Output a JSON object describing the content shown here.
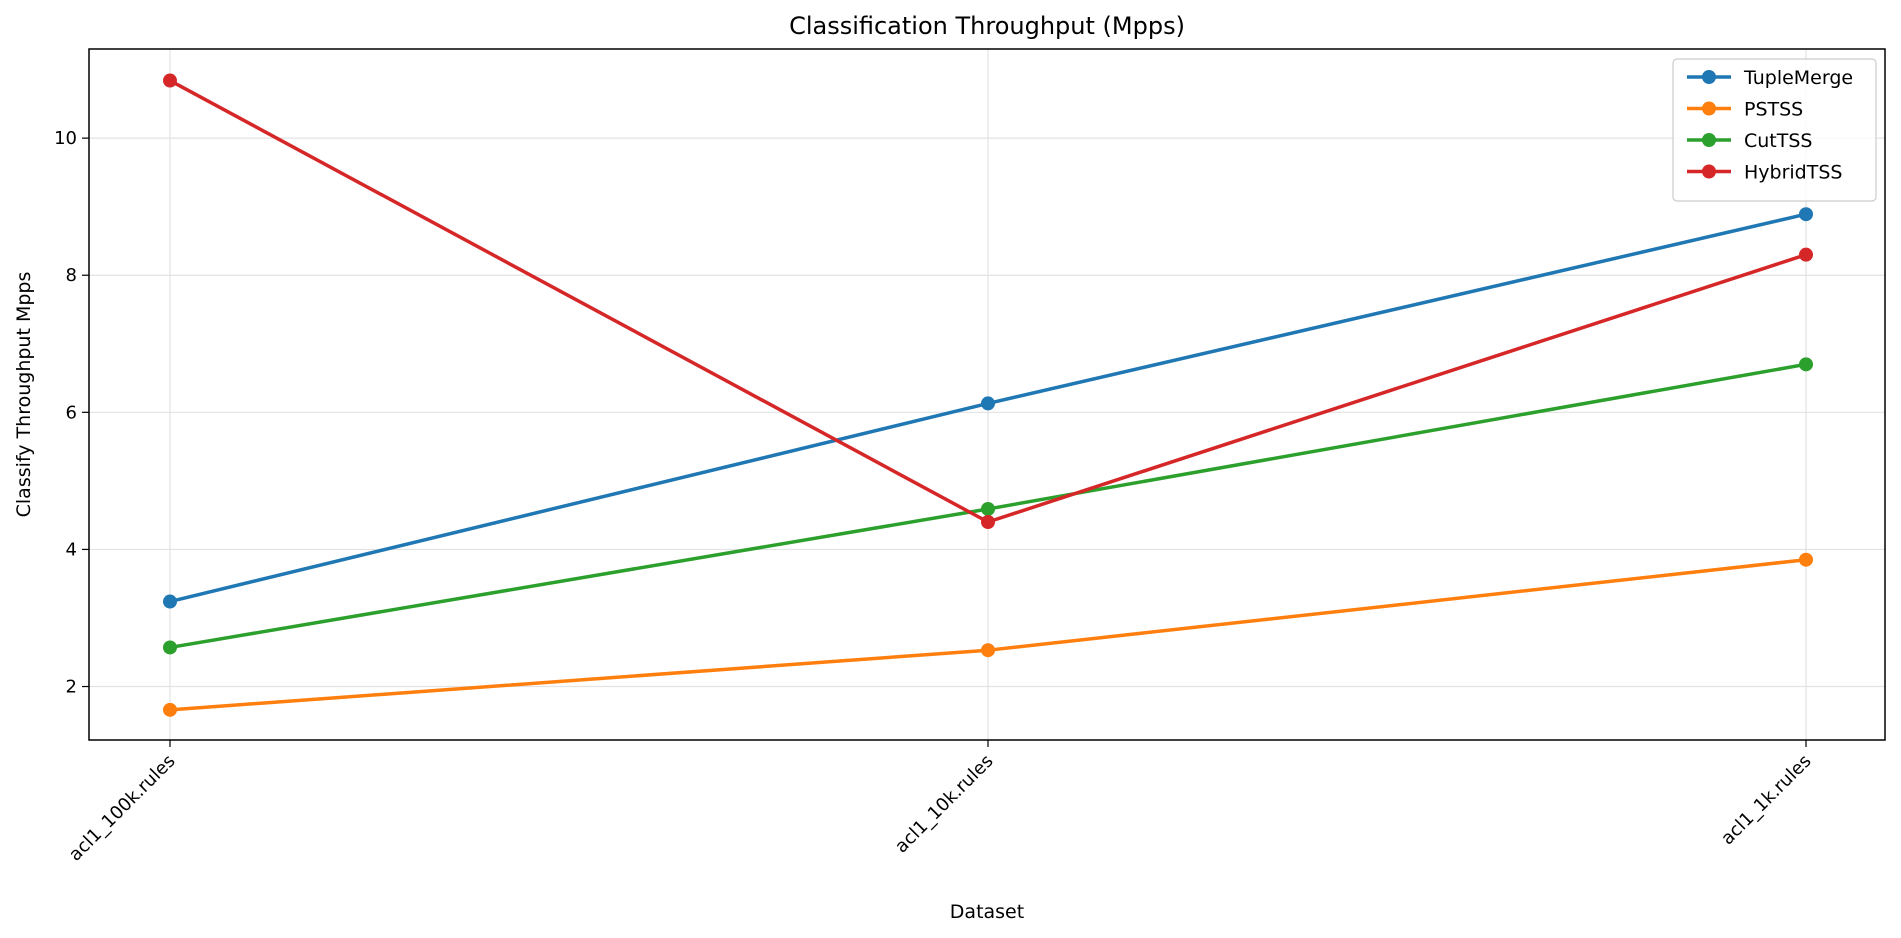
{
  "chart_data": {
    "type": "line",
    "title": "Classification Throughput (Mpps)",
    "xlabel": "Dataset",
    "ylabel": "Classify Throughput Mpps",
    "categories": [
      "acl1_100k.rules",
      "acl1_10k.rules",
      "acl1_1k.rules"
    ],
    "ylim": [
      1.22,
      11.3
    ],
    "yticks": [
      2,
      4,
      6,
      8,
      10
    ],
    "grid": true,
    "legend_position": "top-right",
    "series": [
      {
        "name": "TupleMerge",
        "color": "#1f77b4",
        "values": [
          3.24,
          6.13,
          8.89
        ]
      },
      {
        "name": "PSTSS",
        "color": "#ff7f0e",
        "values": [
          1.66,
          2.53,
          3.85
        ]
      },
      {
        "name": "CutTSS",
        "color": "#2ca02c",
        "values": [
          2.57,
          4.59,
          6.7
        ]
      },
      {
        "name": "HybridTSS",
        "color": "#d62728",
        "values": [
          10.84,
          4.4,
          8.3
        ]
      }
    ]
  }
}
